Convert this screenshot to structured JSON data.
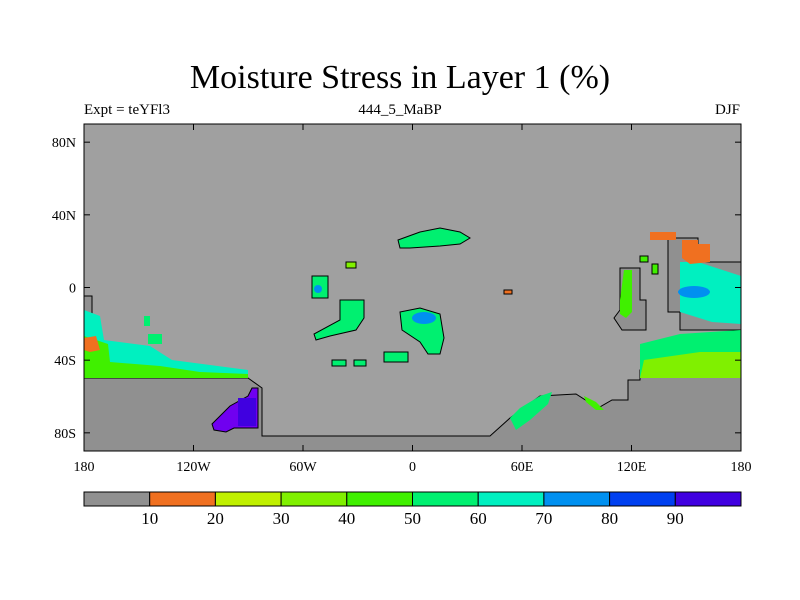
{
  "title": "Moisture Stress in Layer 1 (%)",
  "expt_label": "Expt = teYFl3",
  "center_label": "444_5_MaBP",
  "season_label": "DJF",
  "lat_ticks": [
    {
      "label": "80N",
      "lat": 80
    },
    {
      "label": "40N",
      "lat": 40
    },
    {
      "label": "0",
      "lat": 0
    },
    {
      "label": "40S",
      "lat": -40
    },
    {
      "label": "80S",
      "lat": -80
    }
  ],
  "lon_ticks": [
    {
      "label": "180",
      "lon": -180
    },
    {
      "label": "120W",
      "lon": -120
    },
    {
      "label": "60W",
      "lon": -60
    },
    {
      "label": "0",
      "lon": 0
    },
    {
      "label": "60E",
      "lon": 60
    },
    {
      "label": "120E",
      "lon": 120
    },
    {
      "label": "180",
      "lon": 180
    }
  ],
  "colorbar": {
    "colors": [
      "#909090",
      "#f07020",
      "#c0f000",
      "#80f000",
      "#40f000",
      "#00f070",
      "#00f0c0",
      "#0090f0",
      "#0040f0",
      "#4000e0",
      "#7000f0"
    ],
    "labels": [
      "10",
      "20",
      "30",
      "40",
      "50",
      "60",
      "70",
      "80",
      "90"
    ]
  },
  "colors": {
    "ocean": "#a0a0a0",
    "land_nodata": "#909090"
  }
}
